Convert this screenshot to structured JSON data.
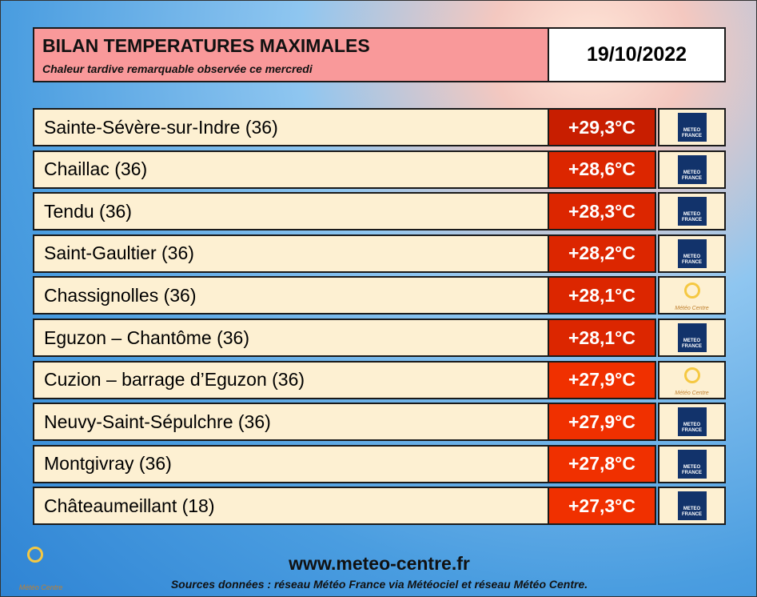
{
  "header": {
    "title": "BILAN TEMPERATURES MAXIMALES",
    "subtitle": "Chaleur tardive remarquable observée ce mercredi",
    "date": "19/10/2022"
  },
  "table": {
    "rows": [
      {
        "station": "Sainte-Sévère-sur-Indre (36)",
        "temperature": "+29,3°C",
        "color": "#c81e00",
        "source": "METEO FRANCE"
      },
      {
        "station": "Chaillac (36)",
        "temperature": "+28,6°C",
        "color": "#dc2600",
        "source": "METEO FRANCE"
      },
      {
        "station": "Tendu (36)",
        "temperature": "+28,3°C",
        "color": "#dc2600",
        "source": "METEO FRANCE"
      },
      {
        "station": "Saint-Gaultier (36)",
        "temperature": "+28,2°C",
        "color": "#dc2600",
        "source": "METEO FRANCE"
      },
      {
        "station": "Chassignolles (36)",
        "temperature": "+28,1°C",
        "color": "#dc2600",
        "source": "Météo Centre"
      },
      {
        "station": "Eguzon – Chantôme (36)",
        "temperature": "+28,1°C",
        "color": "#dc2600",
        "source": "METEO FRANCE"
      },
      {
        "station": "Cuzion – barrage d’Eguzon (36)",
        "temperature": "+27,9°C",
        "color": "#f03000",
        "source": "Météo Centre"
      },
      {
        "station": "Neuvy-Saint-Sépulchre (36)",
        "temperature": "+27,9°C",
        "color": "#f03000",
        "source": "METEO FRANCE"
      },
      {
        "station": "Montgivray (36)",
        "temperature": "+27,8°C",
        "color": "#f03000",
        "source": "METEO FRANCE"
      },
      {
        "station": "Châteaumeillant (18)",
        "temperature": "+27,3°C",
        "color": "#f03000",
        "source": "METEO FRANCE"
      }
    ]
  },
  "footer": {
    "logo": "Météo Centre",
    "url": "www.meteo-centre.fr",
    "sources": "Sources données : réseau Météo France via Météociel et réseau Météo Centre."
  }
}
